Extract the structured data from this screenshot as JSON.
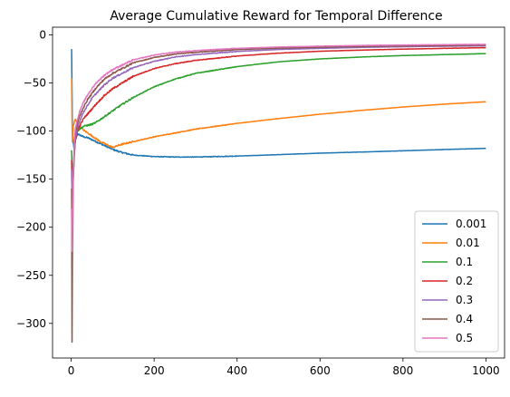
{
  "chart_data": {
    "type": "line",
    "title": "Average Cumulative Reward for Temporal Difference",
    "xlabel": "",
    "ylabel": "",
    "xlim": [
      -45,
      1045
    ],
    "ylim": [
      -336,
      8
    ],
    "xticks": [
      0,
      200,
      400,
      600,
      800,
      1000
    ],
    "yticks": [
      0,
      -50,
      -100,
      -150,
      -200,
      -250,
      -300
    ],
    "grid": false,
    "legend_position": "lower right",
    "series": [
      {
        "name": "0.001",
        "color": "#1f77b4",
        "x": [
          1,
          2,
          3,
          5,
          8,
          10,
          15,
          20,
          30,
          40,
          50,
          60,
          70,
          80,
          90,
          100,
          120,
          150,
          200,
          250,
          300,
          350,
          400,
          450,
          500,
          600,
          700,
          800,
          900,
          1000
        ],
        "y": [
          -15,
          -58,
          -100,
          -112,
          -122,
          -110,
          -103,
          -104,
          -106,
          -107,
          -109,
          -111,
          -113,
          -115,
          -117,
          -119,
          -122,
          -125,
          -126.5,
          -127,
          -127,
          -126.5,
          -126,
          -125.3,
          -124.5,
          -123,
          -121.8,
          -120.5,
          -119.2,
          -118
        ]
      },
      {
        "name": "0.01",
        "color": "#ff7f0e",
        "x": [
          1,
          2,
          3,
          5,
          8,
          10,
          15,
          20,
          30,
          40,
          50,
          60,
          70,
          80,
          90,
          100,
          120,
          150,
          200,
          250,
          300,
          350,
          400,
          450,
          500,
          600,
          700,
          800,
          900,
          1000
        ],
        "y": [
          -45,
          -90,
          -112,
          -95,
          -90,
          -88,
          -93,
          -95,
          -99,
          -102,
          -105,
          -108,
          -111,
          -113,
          -115,
          -117,
          -114,
          -111,
          -106,
          -102,
          -98,
          -95,
          -92,
          -89.5,
          -87,
          -82.5,
          -78.5,
          -75,
          -72,
          -69.5
        ]
      },
      {
        "name": "0.1",
        "color": "#2ca02c",
        "x": [
          1,
          2,
          3,
          5,
          8,
          10,
          15,
          20,
          30,
          40,
          50,
          60,
          80,
          100,
          120,
          150,
          200,
          250,
          300,
          400,
          500,
          600,
          700,
          800,
          900,
          1000
        ],
        "y": [
          -120,
          -138,
          -150,
          -135,
          -118,
          -108,
          -100,
          -98,
          -95,
          -94,
          -93,
          -91,
          -85,
          -79,
          -73,
          -65,
          -54,
          -46,
          -40,
          -33,
          -28,
          -25,
          -23,
          -21.5,
          -20.5,
          -19.5
        ]
      },
      {
        "name": "0.2",
        "color": "#d62728",
        "x": [
          1,
          2,
          3,
          5,
          8,
          10,
          15,
          20,
          30,
          40,
          50,
          60,
          80,
          100,
          150,
          200,
          250,
          300,
          400,
          500,
          600,
          700,
          800,
          900,
          1000
        ],
        "y": [
          -130,
          -150,
          -160,
          -140,
          -120,
          -110,
          -100,
          -95,
          -87,
          -82,
          -77,
          -72,
          -63,
          -56,
          -43,
          -35,
          -30,
          -26.5,
          -22,
          -19,
          -17,
          -15.8,
          -14.8,
          -14,
          -13.3
        ]
      },
      {
        "name": "0.3",
        "color": "#9467bd",
        "x": [
          1,
          2,
          3,
          5,
          8,
          10,
          15,
          20,
          30,
          40,
          50,
          60,
          80,
          100,
          150,
          200,
          250,
          300,
          400,
          500,
          600,
          700,
          800,
          900,
          1000
        ],
        "y": [
          -140,
          -165,
          -175,
          -150,
          -120,
          -108,
          -97,
          -90,
          -80,
          -73,
          -66,
          -61,
          -52,
          -45,
          -34,
          -27.5,
          -23,
          -20.5,
          -17.2,
          -15.2,
          -14,
          -13,
          -12.3,
          -11.8,
          -11.4
        ]
      },
      {
        "name": "0.4",
        "color": "#8c564b",
        "x": [
          1,
          2,
          3,
          5,
          8,
          10,
          15,
          20,
          30,
          40,
          50,
          60,
          80,
          100,
          150,
          200,
          250,
          300,
          400,
          500,
          600,
          700,
          800,
          900,
          1000
        ],
        "y": [
          -160,
          -320,
          -230,
          -150,
          -115,
          -102,
          -92,
          -85,
          -75,
          -67,
          -61,
          -55,
          -46,
          -40,
          -29,
          -23.5,
          -20,
          -18,
          -15.3,
          -13.8,
          -12.8,
          -12,
          -11.5,
          -11,
          -10.6
        ]
      },
      {
        "name": "0.5",
        "color": "#e377c2",
        "x": [
          1,
          2,
          3,
          5,
          8,
          10,
          15,
          20,
          30,
          40,
          50,
          60,
          80,
          100,
          150,
          200,
          250,
          300,
          400,
          500,
          600,
          700,
          800,
          900,
          1000
        ],
        "y": [
          -180,
          -225,
          -190,
          -140,
          -110,
          -97,
          -88,
          -80,
          -70,
          -62,
          -56,
          -50,
          -42,
          -36,
          -26,
          -21,
          -18,
          -16.3,
          -14,
          -12.6,
          -11.7,
          -11,
          -10.5,
          -10.1,
          -9.8
        ]
      }
    ]
  }
}
